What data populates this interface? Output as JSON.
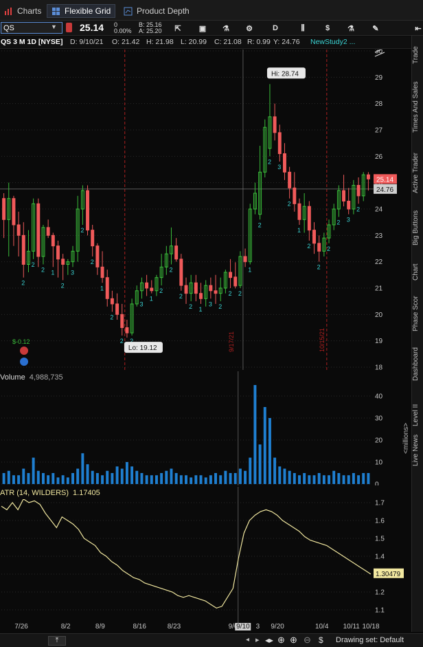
{
  "tabs": [
    {
      "label": "Charts",
      "icon": "bar-chart-icon",
      "active": false
    },
    {
      "label": "Flexible Grid",
      "icon": "grid-icon",
      "active": true
    },
    {
      "label": "Product Depth",
      "icon": "depth-icon",
      "active": false
    }
  ],
  "quote": {
    "symbol": "QS",
    "last": "25.14",
    "change": "0",
    "change_pct": "0.00%",
    "bid": "B: 25.16",
    "ask": "A: 25.20"
  },
  "toolbar": {
    "period_button": "D"
  },
  "infobar": {
    "title": "QS 3 M 1D [NYSE]",
    "date": "D: 9/10/21",
    "open": "O: 21.42",
    "high": "H: 21.98",
    "low": "L: 20.99",
    "close": "C: 21.08",
    "range": "R: 0.99",
    "y": "Y: 24.76",
    "study": "NewStudy2 ..."
  },
  "colors": {
    "up": "#3bbf3b",
    "down": "#f05a5a",
    "volume": "#1f7fd0",
    "atr": "#f2e8a0",
    "study_label": "#3bd4d4",
    "accent": "#5b8dd6"
  },
  "price_panel": {
    "hi_label": "Hi: 28.74",
    "lo_label": "Lo: 19.12",
    "last_badge": "25.14",
    "cursor_badge": "24.76",
    "earnings_label": "$-0.12",
    "vline_labels": [
      "9/17/21",
      "10/15/21"
    ],
    "y_ticks": [
      "30",
      "29",
      "28",
      "27",
      "26",
      "25",
      "24",
      "23",
      "22",
      "21",
      "20",
      "19",
      "18"
    ]
  },
  "volume_panel": {
    "title": "Volume",
    "value": "4,988,735",
    "y_ticks": [
      "40",
      "30",
      "20",
      "10",
      "0"
    ],
    "unit": "<millions>"
  },
  "atr_panel": {
    "title": "ATR (14, WILDERS)",
    "value": "1.17405",
    "last_badge": "1.30479",
    "y_ticks": [
      "1.7",
      "1.6",
      "1.5",
      "1.4",
      "1.3",
      "1.2",
      "1.1"
    ]
  },
  "x_axis": {
    "labels": [
      "7/26",
      "8/2",
      "8/9",
      "8/16",
      "8/23",
      "9/6",
      "9/10",
      "3",
      "9/20",
      "10/4",
      "10/11",
      "10/18"
    ],
    "cursor_label": "9/10"
  },
  "right_rail": [
    "Trade",
    "Times And Sales",
    "Active Trader",
    "Big Buttons",
    "Chart",
    "Phase Scores",
    "Dashboard",
    "Level II",
    "Live News"
  ],
  "status": {
    "drawing_set": "Drawing set: Default"
  },
  "chart_data": {
    "type": "candlestick",
    "ylim": [
      18,
      30
    ],
    "candles": [
      [
        24.4,
        24.6,
        22.9,
        23.6
      ],
      [
        23.6,
        25.0,
        22.2,
        24.4
      ],
      [
        24.4,
        24.5,
        22.6,
        23.4
      ],
      [
        23.4,
        23.9,
        22.2,
        23.0
      ],
      [
        23.0,
        23.5,
        21.4,
        21.9
      ],
      [
        21.9,
        23.2,
        21.6,
        22.4
      ],
      [
        22.4,
        24.4,
        22.1,
        24.2
      ],
      [
        24.2,
        24.4,
        21.8,
        22.2
      ],
      [
        22.2,
        23.4,
        21.9,
        23.3
      ],
      [
        23.3,
        23.6,
        22.9,
        23.0
      ],
      [
        23.0,
        23.1,
        21.8,
        22.6
      ],
      [
        22.6,
        22.8,
        21.4,
        22.1
      ],
      [
        22.1,
        22.3,
        21.3,
        21.9
      ],
      [
        21.9,
        22.1,
        21.5,
        22.0
      ],
      [
        22.0,
        22.6,
        21.8,
        22.4
      ],
      [
        22.4,
        24.5,
        22.0,
        24.0
      ],
      [
        24.0,
        24.9,
        23.4,
        24.7
      ],
      [
        24.7,
        24.9,
        23.0,
        23.2
      ],
      [
        23.2,
        23.4,
        22.2,
        22.6
      ],
      [
        22.6,
        22.7,
        21.5,
        21.8
      ],
      [
        21.8,
        22.4,
        21.2,
        21.4
      ],
      [
        21.4,
        21.7,
        20.3,
        20.6
      ],
      [
        20.6,
        20.9,
        20.1,
        20.4
      ],
      [
        20.4,
        20.8,
        19.8,
        20.0
      ],
      [
        20.0,
        20.4,
        19.2,
        19.5
      ],
      [
        19.5,
        19.8,
        19.12,
        19.3
      ],
      [
        19.3,
        20.6,
        19.2,
        20.4
      ],
      [
        20.4,
        21.1,
        20.3,
        20.9
      ],
      [
        20.9,
        21.4,
        20.6,
        21.2
      ],
      [
        21.2,
        21.5,
        20.7,
        21.0
      ],
      [
        21.0,
        21.3,
        20.8,
        20.9
      ],
      [
        20.9,
        21.5,
        20.7,
        21.4
      ],
      [
        21.4,
        22.3,
        21.1,
        21.8
      ],
      [
        21.8,
        22.6,
        21.5,
        22.3
      ],
      [
        22.3,
        23.3,
        21.9,
        22.6
      ],
      [
        22.6,
        22.9,
        22.0,
        22.1
      ],
      [
        22.1,
        22.3,
        20.9,
        21.1
      ],
      [
        21.1,
        21.4,
        20.4,
        20.8
      ],
      [
        20.8,
        21.5,
        20.5,
        21.2
      ],
      [
        21.2,
        21.5,
        20.5,
        20.8
      ],
      [
        20.8,
        21.2,
        20.4,
        20.6
      ],
      [
        20.6,
        21.3,
        20.3,
        21.1
      ],
      [
        21.1,
        21.4,
        20.6,
        20.9
      ],
      [
        20.9,
        21.5,
        20.4,
        20.8
      ],
      [
        20.8,
        21.4,
        20.5,
        21.0
      ],
      [
        21.0,
        21.7,
        20.8,
        21.6
      ],
      [
        21.6,
        22.1,
        21.0,
        21.4
      ],
      [
        21.42,
        21.98,
        20.99,
        21.08
      ],
      [
        21.1,
        22.4,
        21.0,
        22.2
      ],
      [
        22.2,
        22.5,
        21.8,
        22.0
      ],
      [
        22.0,
        24.2,
        21.9,
        24.0
      ],
      [
        24.0,
        25.0,
        23.8,
        24.6
      ],
      [
        23.8,
        26.4,
        23.6,
        25.4
      ],
      [
        25.4,
        27.4,
        25.2,
        27.1
      ],
      [
        26.3,
        28.74,
        26.0,
        27.5
      ],
      [
        27.5,
        28.0,
        26.6,
        26.9
      ],
      [
        26.9,
        27.2,
        25.8,
        26.1
      ],
      [
        26.1,
        26.5,
        25.1,
        25.4
      ],
      [
        25.4,
        25.6,
        24.4,
        24.8
      ],
      [
        24.8,
        25.4,
        23.9,
        24.2
      ],
      [
        24.2,
        24.4,
        23.4,
        23.6
      ],
      [
        23.6,
        24.6,
        23.1,
        24.1
      ],
      [
        24.1,
        24.3,
        22.8,
        23.2
      ],
      [
        23.2,
        23.5,
        22.3,
        22.7
      ],
      [
        22.7,
        23.0,
        22.0,
        22.4
      ],
      [
        22.4,
        23.1,
        22.2,
        22.9
      ],
      [
        22.9,
        23.6,
        22.7,
        23.4
      ],
      [
        23.4,
        24.2,
        23.2,
        24.0
      ],
      [
        24.0,
        24.9,
        23.7,
        24.7
      ],
      [
        24.7,
        25.3,
        24.1,
        24.3
      ],
      [
        24.3,
        24.8,
        23.8,
        24.0
      ],
      [
        24.0,
        25.1,
        23.8,
        24.9
      ],
      [
        24.9,
        25.2,
        24.2,
        24.5
      ],
      [
        24.5,
        25.4,
        24.3,
        25.3
      ],
      [
        25.3,
        25.4,
        24.7,
        25.14
      ]
    ],
    "volume_millions": [
      5,
      6,
      4,
      4,
      7,
      5,
      12,
      6,
      5,
      4,
      5,
      3,
      4,
      3,
      5,
      7,
      14,
      9,
      6,
      5,
      4,
      6,
      5,
      8,
      7,
      10,
      8,
      6,
      5,
      4,
      4,
      4,
      5,
      6,
      7,
      5,
      4,
      4,
      3,
      4,
      4,
      3,
      4,
      5,
      4,
      6,
      5,
      5,
      7,
      6,
      12,
      45,
      18,
      35,
      30,
      12,
      8,
      7,
      6,
      5,
      4,
      5,
      4,
      4,
      5,
      4,
      4,
      6,
      5,
      4,
      4,
      5,
      4,
      5,
      5
    ],
    "atr": [
      1.68,
      1.66,
      1.7,
      1.66,
      1.72,
      1.7,
      1.71,
      1.69,
      1.64,
      1.6,
      1.56,
      1.62,
      1.6,
      1.58,
      1.55,
      1.5,
      1.48,
      1.46,
      1.42,
      1.4,
      1.37,
      1.35,
      1.32,
      1.3,
      1.28,
      1.27,
      1.25,
      1.24,
      1.23,
      1.22,
      1.21,
      1.2,
      1.18,
      1.17,
      1.18,
      1.17,
      1.16,
      1.15,
      1.13,
      1.11,
      1.12,
      1.17,
      1.22,
      1.39,
      1.53,
      1.6,
      1.63,
      1.65,
      1.66,
      1.65,
      1.63,
      1.6,
      1.58,
      1.56,
      1.54,
      1.51,
      1.49,
      1.48,
      1.47,
      1.46,
      1.44,
      1.42,
      1.4,
      1.38,
      1.36,
      1.34,
      1.32,
      1.3
    ]
  }
}
